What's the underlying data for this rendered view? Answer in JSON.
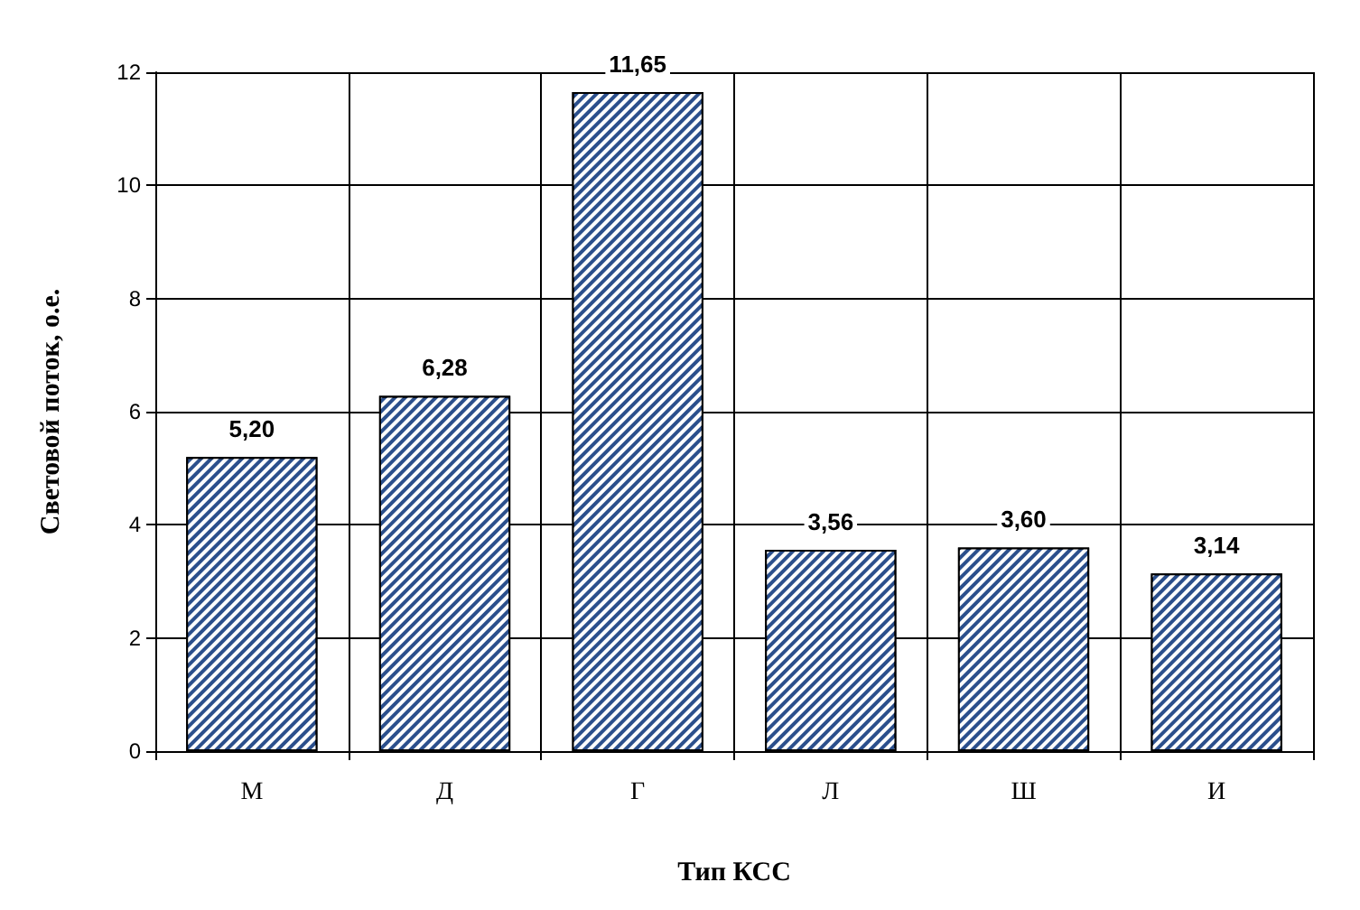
{
  "chart_data": {
    "type": "bar",
    "xlabel": "Тип КСС",
    "ylabel": "Световой поток, о.е.",
    "categories": [
      "М",
      "Д",
      "Г",
      "Л",
      "Ш",
      "И"
    ],
    "values": [
      5.2,
      6.28,
      11.65,
      3.56,
      3.6,
      3.14
    ],
    "value_labels": [
      "5,20",
      "6,28",
      "11,65",
      "3,56",
      "3,60",
      "3,14"
    ],
    "color": "#2b4f8c",
    "ylim": [
      0,
      12
    ],
    "yticks": [
      0,
      2,
      4,
      6,
      8,
      10,
      12
    ],
    "grid": true
  }
}
